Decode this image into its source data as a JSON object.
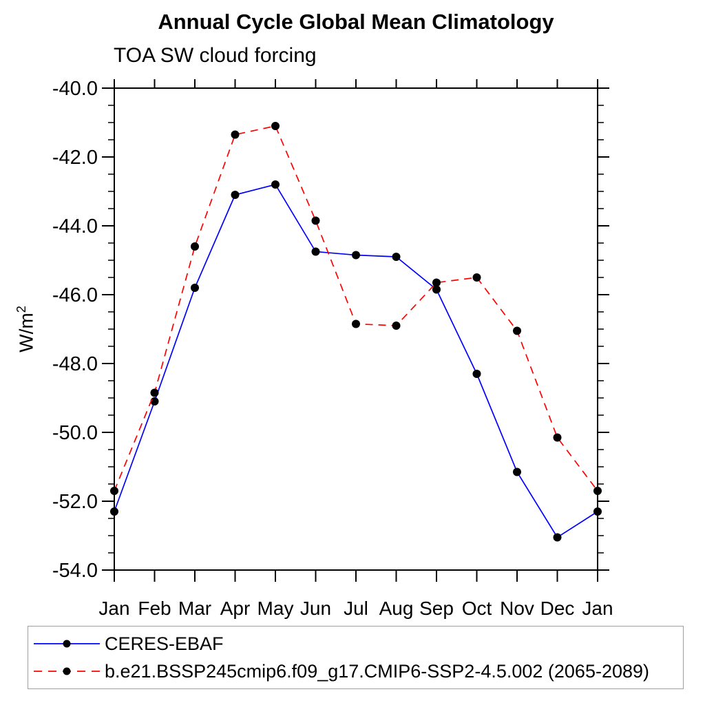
{
  "page": {
    "title": "Annual Cycle Global Mean Climatology",
    "subtitle": "TOA SW cloud forcing"
  },
  "chart_data": {
    "type": "line",
    "title": "Annual Cycle Global Mean Climatology",
    "subtitle": "TOA SW cloud forcing",
    "ylabel": "W/m^2",
    "ylabel_parts": {
      "base": "W/m",
      "exp": "2"
    },
    "xlabel": "",
    "categories": [
      "Jan",
      "Feb",
      "Mar",
      "Apr",
      "May",
      "Jun",
      "Jul",
      "Aug",
      "Sep",
      "Oct",
      "Nov",
      "Dec",
      "Jan"
    ],
    "ylim": [
      -54,
      -40
    ],
    "yticks": [
      -40,
      -42,
      -44,
      -46,
      -48,
      -50,
      -52,
      -54
    ],
    "ytick_labels": [
      "-40.0",
      "-42.0",
      "-44.0",
      "-46.0",
      "-48.0",
      "-50.0",
      "-52.0",
      "-54.0"
    ],
    "ytick_minor_step": 0.5,
    "grid": false,
    "legend_position": "bottom",
    "marker_color": "#000000",
    "series": [
      {
        "name": "CERES-EBAF",
        "color": "#0000ff",
        "style": "solid",
        "marker": "circle",
        "values": [
          -52.3,
          -49.1,
          -45.8,
          -43.1,
          -42.8,
          -44.75,
          -44.85,
          -44.9,
          -45.85,
          -48.3,
          -51.15,
          -53.05,
          -52.3
        ]
      },
      {
        "name": "b.e21.BSSP245cmip6.f09_g17.CMIP6-SSP2-4.5.002 (2065-2089)",
        "color": "#ff0000",
        "style": "dashed",
        "marker": "circle",
        "values": [
          -51.7,
          -48.85,
          -44.6,
          -41.35,
          -41.1,
          -43.85,
          -46.85,
          -46.9,
          -45.65,
          -45.5,
          -47.05,
          -50.15,
          -51.7
        ]
      }
    ]
  }
}
